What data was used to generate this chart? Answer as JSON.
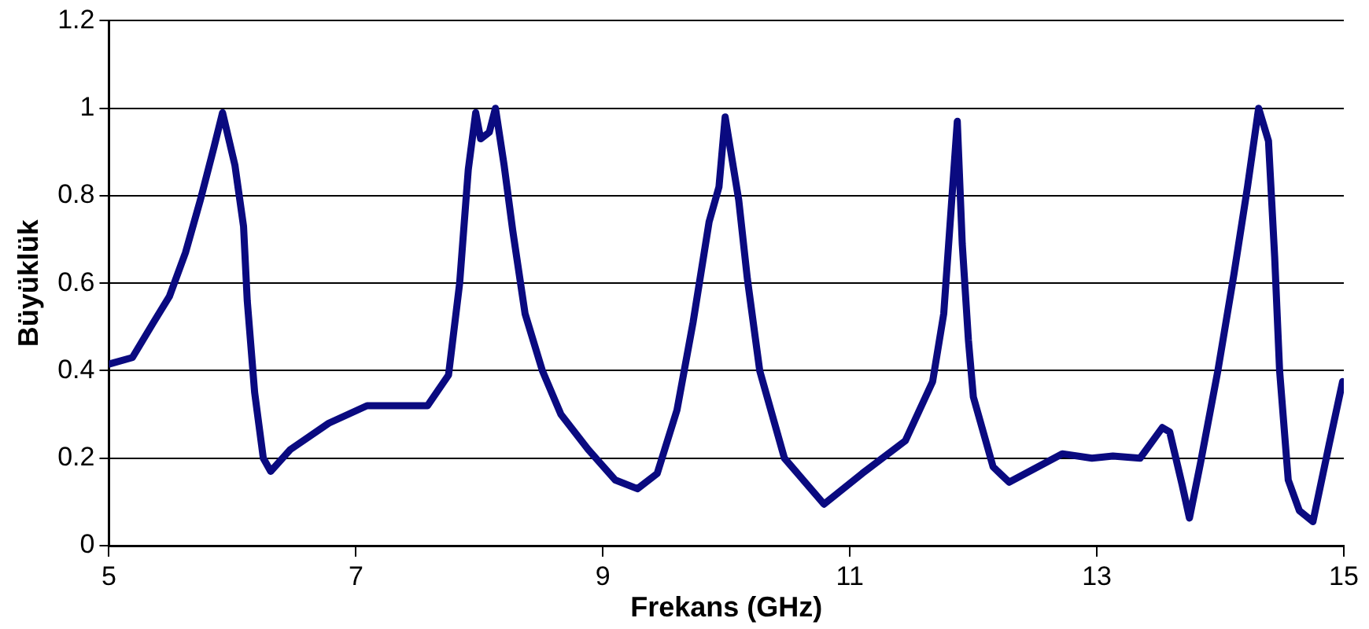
{
  "chart_data": {
    "type": "line",
    "xlabel": "Frekans (GHz)",
    "ylabel": "Büyüklük",
    "xlim": [
      5,
      15
    ],
    "xticks": [
      5,
      7,
      9,
      11,
      13,
      15
    ],
    "ylim": [
      0,
      1.2
    ],
    "yticks": [
      0,
      0.2,
      0.4,
      0.6,
      0.8,
      1,
      1.2
    ],
    "grid": "y",
    "legend": false,
    "marker": "none",
    "line_style": "solid",
    "series": [
      {
        "color": "#0a0a80",
        "x": [
          5.0,
          5.19,
          5.36,
          5.49,
          5.62,
          5.74,
          5.85,
          5.92,
          6.02,
          6.09,
          6.12,
          6.18,
          6.25,
          6.31,
          6.47,
          6.78,
          7.09,
          7.58,
          7.75,
          7.84,
          7.91,
          7.97,
          8.01,
          8.08,
          8.13,
          8.2,
          8.27,
          8.37,
          8.51,
          8.66,
          8.88,
          9.1,
          9.28,
          9.44,
          9.6,
          9.73,
          9.86,
          9.94,
          9.99,
          10.1,
          10.17,
          10.27,
          10.47,
          10.79,
          11.1,
          11.45,
          11.67,
          11.76,
          11.8,
          11.87,
          11.91,
          11.96,
          12.0,
          12.16,
          12.29,
          12.72,
          12.96,
          13.13,
          13.35,
          13.53,
          13.59,
          13.69,
          13.75,
          13.84,
          13.98,
          14.11,
          14.22,
          14.31,
          14.39,
          14.44,
          14.48,
          14.55,
          14.64,
          14.75,
          14.88,
          14.99
        ],
        "values": [
          0.415,
          0.43,
          0.51,
          0.57,
          0.67,
          0.79,
          0.91,
          0.99,
          0.87,
          0.73,
          0.56,
          0.35,
          0.2,
          0.17,
          0.22,
          0.28,
          0.32,
          0.32,
          0.39,
          0.6,
          0.86,
          0.99,
          0.93,
          0.945,
          1.0,
          0.87,
          0.72,
          0.53,
          0.4,
          0.3,
          0.22,
          0.15,
          0.13,
          0.165,
          0.31,
          0.51,
          0.74,
          0.82,
          0.98,
          0.79,
          0.61,
          0.4,
          0.2,
          0.095,
          0.165,
          0.24,
          0.375,
          0.53,
          0.69,
          0.97,
          0.69,
          0.47,
          0.34,
          0.18,
          0.145,
          0.21,
          0.2,
          0.205,
          0.2,
          0.27,
          0.26,
          0.14,
          0.063,
          0.19,
          0.4,
          0.62,
          0.82,
          1.0,
          0.925,
          0.66,
          0.4,
          0.15,
          0.08,
          0.055,
          0.23,
          0.375
        ]
      }
    ]
  }
}
